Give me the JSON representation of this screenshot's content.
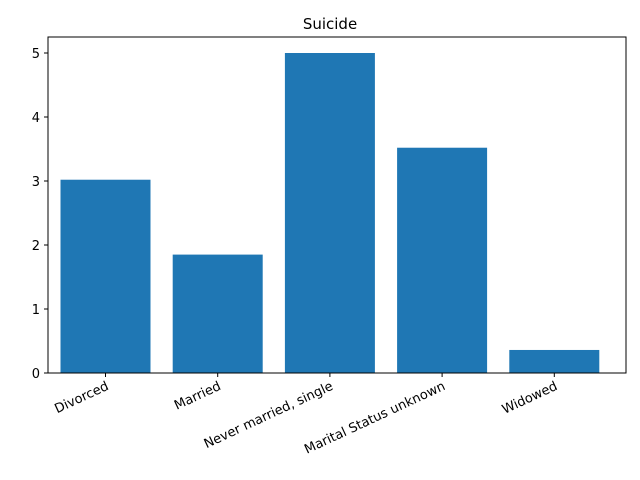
{
  "chart_data": {
    "type": "bar",
    "title": "Suicide",
    "xlabel": "",
    "ylabel": "",
    "categories": [
      "Divorced",
      "Married",
      "Never married, single",
      "Marital Status unknown",
      "Widowed"
    ],
    "values": [
      3.02,
      1.85,
      5.0,
      3.52,
      0.36
    ],
    "ylim": [
      0,
      5.25
    ],
    "yticks": [
      "0",
      "1",
      "2",
      "3",
      "4",
      "5"
    ],
    "grid": false,
    "legend": "none",
    "bar_color": "#1f77b4"
  }
}
